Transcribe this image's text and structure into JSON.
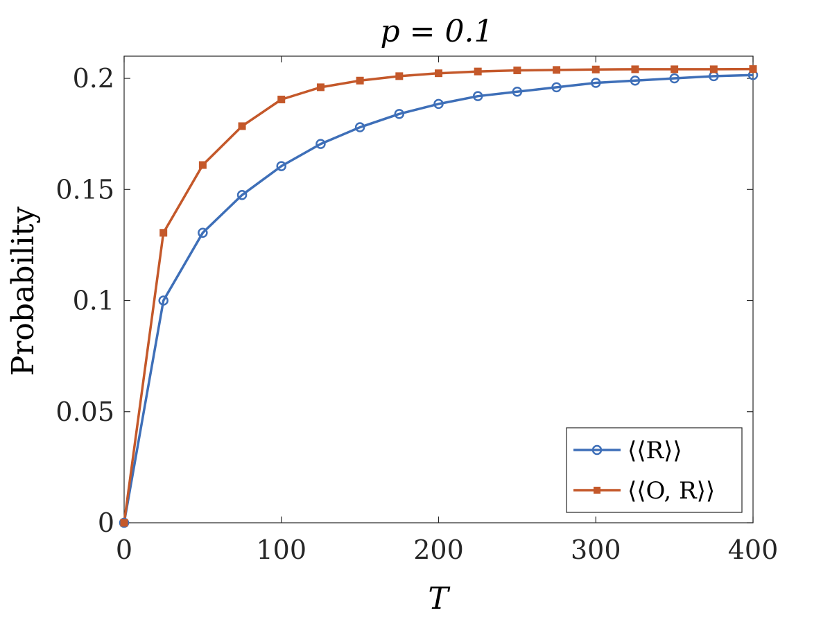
{
  "chart_data": {
    "type": "line",
    "title": "p = 0.1",
    "xlabel": "T",
    "ylabel": "Probability",
    "xlim": [
      0,
      400
    ],
    "ylim": [
      0,
      0.21
    ],
    "xticks": [
      0,
      100,
      200,
      300,
      400
    ],
    "xtick_labels": [
      "0",
      "100",
      "200",
      "300",
      "400"
    ],
    "yticks": [
      0,
      0.05,
      0.1,
      0.15,
      0.2
    ],
    "ytick_labels": [
      "0",
      "0.05",
      "0.1",
      "0.15",
      "0.2"
    ],
    "grid": false,
    "legend_position": "bottom-right",
    "x": [
      0,
      25,
      50,
      75,
      100,
      125,
      150,
      175,
      200,
      225,
      250,
      275,
      300,
      325,
      350,
      375,
      400
    ],
    "series": [
      {
        "name": "⟨⟨R⟩⟩",
        "color": "#3e6fb8",
        "marker": "circle",
        "values": [
          0,
          0.1,
          0.1305,
          0.1475,
          0.1605,
          0.1705,
          0.178,
          0.184,
          0.1885,
          0.192,
          0.194,
          0.196,
          0.198,
          0.199,
          0.2,
          0.201,
          0.2015
        ]
      },
      {
        "name": "⟨⟨O, R⟩⟩",
        "color": "#c4582a",
        "marker": "square",
        "values": [
          0,
          0.1305,
          0.161,
          0.1785,
          0.1905,
          0.196,
          0.199,
          0.201,
          0.2023,
          0.2031,
          0.2036,
          0.2038,
          0.204,
          0.2041,
          0.2041,
          0.2041,
          0.2042
        ]
      }
    ]
  }
}
